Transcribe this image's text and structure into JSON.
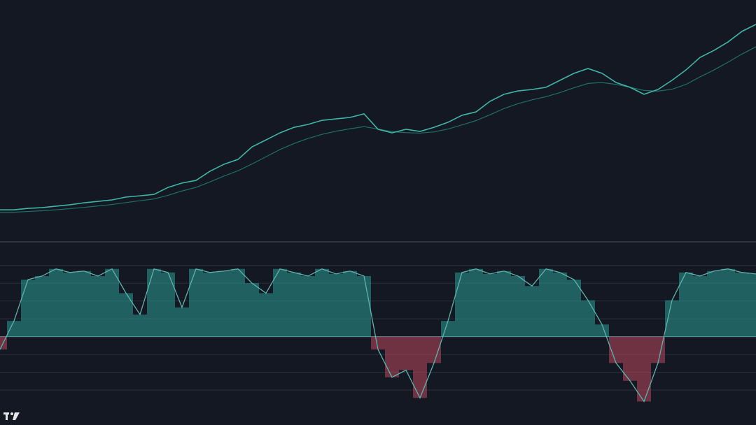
{
  "chart_data": [
    {
      "type": "line",
      "ylim": [
        0,
        100
      ],
      "series": [
        {
          "color": "#3fb5a8",
          "values": [
            13,
            13,
            13.6,
            13.9,
            14.5,
            15.1,
            15.9,
            16.5,
            17.1,
            18.3,
            18.8,
            19.4,
            22.3,
            24.1,
            25.2,
            29,
            31.9,
            33.9,
            39.1,
            42,
            44.9,
            47.2,
            48.4,
            50.1,
            50.7,
            51.3,
            52.8,
            46.4,
            44.9,
            46.4,
            45.5,
            47.2,
            49.3,
            52.2,
            53.6,
            58,
            60.9,
            62.3,
            62.9,
            63.8,
            66.7,
            69.6,
            71.6,
            69.6,
            65.8,
            63.8,
            60.9,
            62.9,
            66.7,
            71,
            76.2,
            79.1,
            82.6,
            87,
            89.9
          ]
        },
        {
          "color": "#1f6f68",
          "values": [
            12,
            12,
            12.3,
            12.6,
            13,
            13.5,
            14,
            14.6,
            15.2,
            16,
            16.8,
            17.5,
            19,
            20.8,
            22.3,
            24.6,
            27,
            29.2,
            32,
            35,
            38,
            40.5,
            42.6,
            44.3,
            45.6,
            46.6,
            47.5,
            46.5,
            45.4,
            45,
            44.8,
            45.3,
            46.5,
            48.2,
            50,
            52.4,
            55,
            57,
            58.6,
            59.9,
            61.6,
            63.6,
            65.4,
            65.8,
            65,
            63.8,
            62.5,
            62.2,
            63,
            65,
            68.1,
            71,
            74.2,
            77.6,
            80.6
          ]
        }
      ]
    },
    {
      "type": "bar",
      "ylim": [
        -124,
        132
      ],
      "pos_color": "#2a9d95",
      "neg_color": "#b8485f",
      "line_color": "#5fb3ad",
      "levels": [
        100,
        75,
        50,
        25,
        0,
        -25,
        -50,
        -75
      ],
      "values": [
        -18,
        22,
        80,
        85,
        95,
        90,
        92,
        85,
        95,
        61,
        31,
        95,
        90,
        41,
        95,
        90,
        92,
        95,
        75,
        61,
        95,
        90,
        85,
        95,
        88,
        92,
        85,
        -18,
        -57,
        -47,
        -86,
        -37,
        22,
        90,
        95,
        88,
        92,
        85,
        71,
        95,
        90,
        80,
        51,
        17,
        -37,
        -62,
        -91,
        -37,
        51,
        90,
        85,
        92,
        95,
        90,
        88
      ]
    }
  ]
}
